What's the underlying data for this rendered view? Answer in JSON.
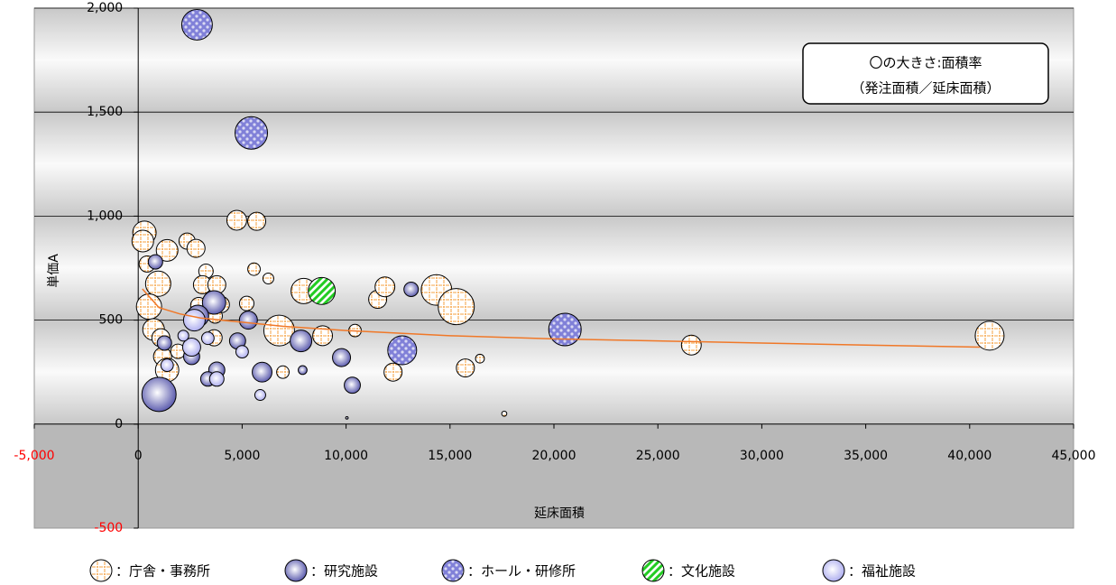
{
  "chart_data": {
    "type": "bubble",
    "xlabel": "延床面積",
    "ylabel": "単価A",
    "annotation": [
      "〇の大きさ:面積率",
      "（発注面積／延床面積）"
    ],
    "xlim": [
      -5000,
      45000
    ],
    "ylim": [
      -500,
      2000
    ],
    "xticks": [
      {
        "value": -5000,
        "label": "-5,000"
      },
      0,
      {
        "value": 5000,
        "label": "5,000"
      },
      {
        "value": 10000,
        "label": "10,000"
      },
      {
        "value": 15000,
        "label": "15,000"
      },
      {
        "value": 20000,
        "label": "20,000"
      },
      {
        "value": 25000,
        "label": "25,000"
      },
      {
        "value": 30000,
        "label": "30,000"
      },
      {
        "value": 35000,
        "label": "35,000"
      },
      {
        "value": 40000,
        "label": "40,000"
      },
      {
        "value": 45000,
        "label": "45,000"
      }
    ],
    "yticks": [
      {
        "value": -500,
        "label": "-500"
      },
      0,
      500,
      {
        "value": 1000,
        "label": "1,000"
      },
      {
        "value": 1500,
        "label": "1,500"
      },
      {
        "value": 2000,
        "label": "2,000"
      }
    ],
    "negative_label_color": "#ff0000",
    "grid": true,
    "series": [
      {
        "name": "：庁舎・事務所",
        "color": "#f5a040",
        "pattern": "cross",
        "x": [
          300,
          220,
          430,
          1390,
          2350,
          2780,
          3260,
          3090,
          960,
          520,
          740,
          1090,
          1170,
          1390,
          1910,
          3780,
          3700,
          3650,
          4000,
          4740,
          5700,
          5570,
          6260,
          6780,
          6960,
          7960,
          8870,
          10430,
          11520,
          11870,
          12260,
          14350,
          15300,
          15740,
          16440,
          17610,
          26610,
          40960,
          2910,
          5220
        ],
        "y": [
          920,
          880,
          770,
          835,
          880,
          845,
          735,
          670,
          675,
          565,
          455,
          415,
          325,
          260,
          350,
          670,
          520,
          415,
          575,
          980,
          975,
          745,
          700,
          450,
          250,
          640,
          425,
          450,
          600,
          660,
          250,
          645,
          565,
          270,
          315,
          50,
          380,
          425,
          570,
          580
        ],
        "size": [
          42,
          36,
          20,
          36,
          20,
          25,
          16,
          25,
          49,
          49,
          36,
          25,
          25,
          42,
          16,
          25,
          16,
          20,
          20,
          30,
          25,
          12,
          9,
          72,
          12,
          49,
          30,
          12,
          25,
          30,
          25,
          72,
          100,
          25,
          6,
          2,
          30,
          64,
          20,
          16
        ]
      },
      {
        "name": "：研究施設",
        "color": "#5050a8",
        "pattern": "radial",
        "x": [
          1000,
          3650,
          2870,
          5960,
          7830,
          9780,
          10300,
          13130,
          830,
          1260,
          2570,
          3780,
          4780,
          3350,
          5300,
          7910,
          10040
        ],
        "y": [
          143,
          585,
          520,
          250,
          400,
          320,
          187,
          648,
          780,
          390,
          325,
          260,
          400,
          217,
          500,
          260,
          30
        ],
        "size": [
          90,
          42,
          36,
          30,
          36,
          25,
          20,
          16,
          16,
          16,
          20,
          20,
          20,
          16,
          25,
          6,
          0.5
        ]
      },
      {
        "name": "：ホール・研修所",
        "color": "#8080d8",
        "pattern": "checker",
        "x": [
          2830,
          5440,
          20530,
          12700
        ],
        "y": [
          1920,
          1400,
          455,
          355
        ],
        "size": [
          72,
          81,
          81,
          64
        ]
      },
      {
        "name": "：文化施設",
        "color": "#22cc22",
        "pattern": "stripe",
        "x": [
          8830
        ],
        "y": [
          640
        ],
        "size": [
          56
        ]
      },
      {
        "name": "：福祉施設",
        "color": "#a8a8ee",
        "pattern": "radial",
        "x": [
          2700,
          2570,
          2170,
          3780,
          5000,
          5870,
          1390,
          3350
        ],
        "y": [
          500,
          370,
          425,
          217,
          348,
          140,
          283,
          413
        ],
        "size": [
          36,
          25,
          9,
          16,
          12,
          9,
          12,
          12
        ]
      }
    ],
    "trendline": {
      "color": "#f07828",
      "x": [
        200,
        1000,
        2000,
        3000,
        5000,
        7000,
        10000,
        15000,
        20000,
        25000,
        30000,
        35000,
        40500
      ],
      "y": [
        650,
        560,
        530,
        510,
        490,
        470,
        450,
        425,
        410,
        400,
        390,
        380,
        370
      ]
    }
  }
}
